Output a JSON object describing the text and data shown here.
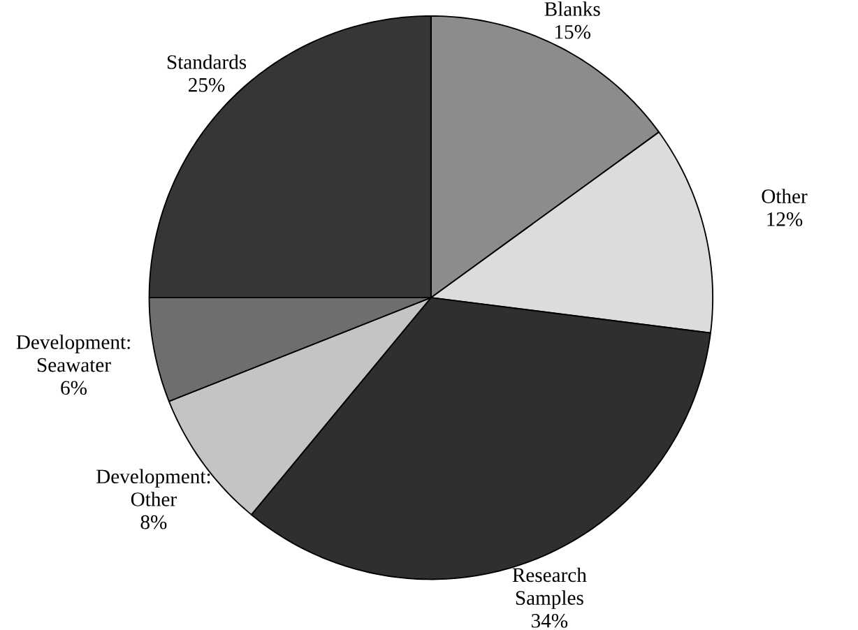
{
  "chart_data": {
    "type": "pie",
    "categories": [
      "Blanks",
      "Other",
      "Research Samples",
      "Development: Other",
      "Development: Seawater",
      "Standards"
    ],
    "values": [
      15,
      12,
      34,
      8,
      6,
      25
    ],
    "value_labels": [
      "15%",
      "12%",
      "34%",
      "8%",
      "6%",
      "25%"
    ],
    "colors": [
      "#8c8c8c",
      "#dcdcdc",
      "#2f2f2f",
      "#c4c4c4",
      "#6e6e6e",
      "#363636"
    ]
  }
}
